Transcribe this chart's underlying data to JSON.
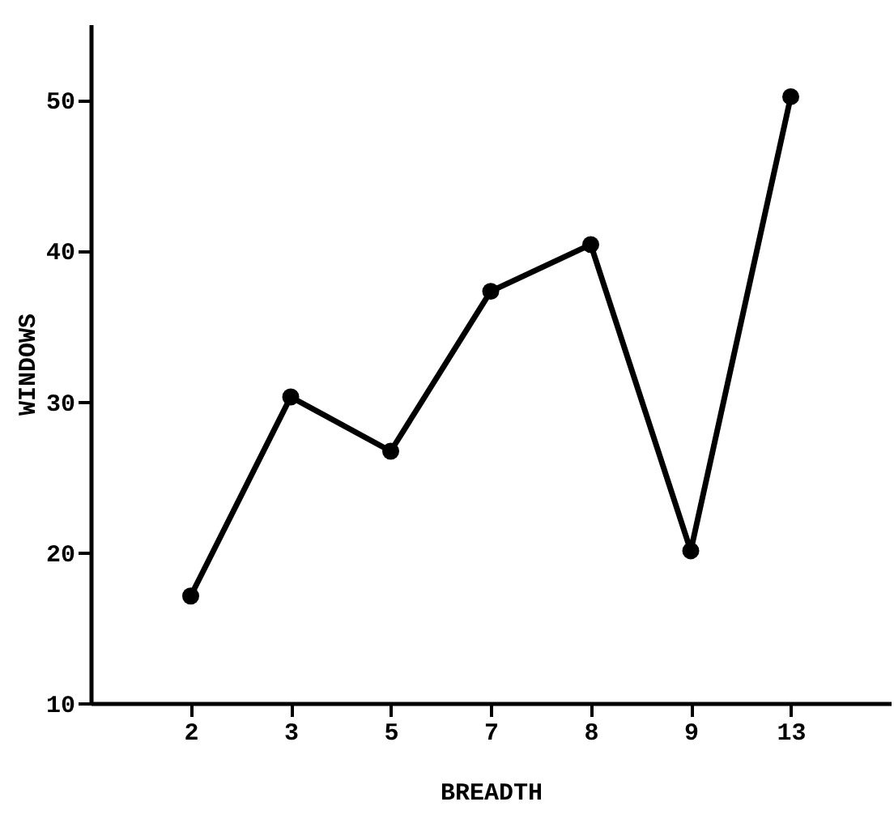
{
  "chart_data": {
    "type": "line",
    "xlabel": "BREADTH",
    "ylabel": "WINDOWS",
    "categories": [
      "2",
      "3",
      "5",
      "7",
      "8",
      "9",
      "13"
    ],
    "values": [
      17.1,
      30.3,
      26.7,
      37.3,
      40.4,
      20.1,
      50.2
    ],
    "color": "#000000",
    "marker": "circle",
    "line_style": "solid",
    "ylim": [
      10,
      55
    ],
    "yticks": [
      10,
      20,
      30,
      40,
      50
    ]
  }
}
